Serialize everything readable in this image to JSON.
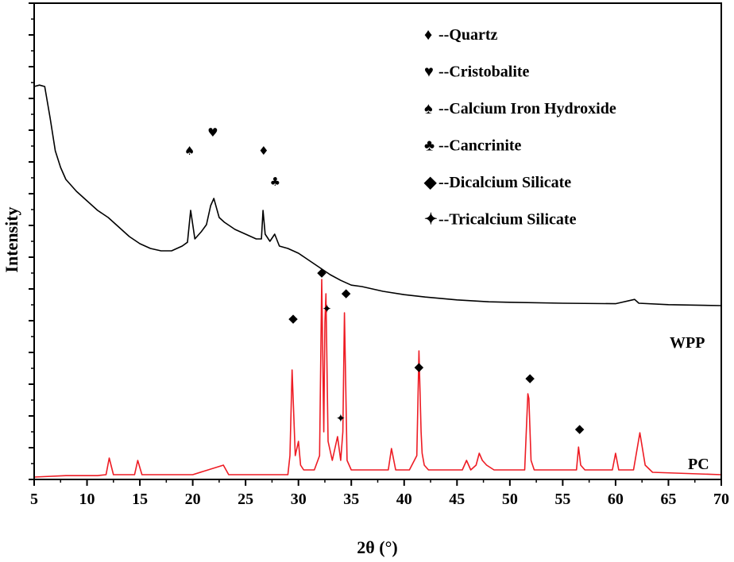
{
  "chart_data": {
    "type": "line",
    "title": "",
    "xlabel": "2θ (°)",
    "ylabel": "Intensity",
    "xlim": [
      5,
      70
    ],
    "x_ticks": [
      "5",
      "10",
      "15",
      "20",
      "25",
      "30",
      "35",
      "40",
      "45",
      "50",
      "55",
      "60",
      "65",
      "70"
    ],
    "ylim": [
      0,
      1
    ],
    "y_tick_labels_shown": false,
    "grid": false,
    "legend_position": "top-right",
    "legend": [
      {
        "symbol": "♦",
        "label": "--Quartz"
      },
      {
        "symbol": "♥",
        "label": "--Cristobalite"
      },
      {
        "symbol": "♠",
        "label": "--Calcium Iron Hydroxide"
      },
      {
        "symbol": "♣",
        "label": "--Cancrinite"
      },
      {
        "symbol": "◆",
        "label": "--Dicalcium Silicate"
      },
      {
        "symbol": "✦",
        "label": "--Tricalcium Silicate"
      }
    ],
    "series": [
      {
        "name": "WPP",
        "color": "#000000",
        "x": [
          5,
          5.5,
          6,
          6.5,
          7,
          7.5,
          8,
          9,
          10,
          11,
          12,
          13,
          14,
          15,
          16,
          17,
          18,
          19,
          19.5,
          19.8,
          20.2,
          20.8,
          21.3,
          21.7,
          22,
          22.5,
          23,
          24,
          25,
          26,
          26.5,
          26.65,
          26.85,
          27.3,
          27.75,
          28.2,
          29,
          30,
          31,
          32,
          33,
          34,
          35,
          36,
          38,
          40,
          42,
          45,
          48,
          50,
          55,
          60,
          61.8,
          62.2,
          65,
          70
        ],
        "y": [
          0.825,
          0.828,
          0.825,
          0.76,
          0.69,
          0.655,
          0.63,
          0.605,
          0.585,
          0.565,
          0.55,
          0.53,
          0.51,
          0.495,
          0.485,
          0.48,
          0.48,
          0.49,
          0.498,
          0.565,
          0.505,
          0.52,
          0.535,
          0.575,
          0.59,
          0.55,
          0.54,
          0.525,
          0.515,
          0.505,
          0.505,
          0.565,
          0.515,
          0.5,
          0.515,
          0.49,
          0.485,
          0.475,
          0.46,
          0.445,
          0.43,
          0.418,
          0.408,
          0.405,
          0.395,
          0.388,
          0.383,
          0.377,
          0.373,
          0.372,
          0.37,
          0.369,
          0.378,
          0.37,
          0.367,
          0.365
        ]
      },
      {
        "name": "PC",
        "color": "#ee1c24",
        "x": [
          5,
          8,
          11,
          11.8,
          12.1,
          12.5,
          14.5,
          14.8,
          15.2,
          20,
          22.9,
          23.4,
          29,
          29.2,
          29.4,
          29.7,
          30.0,
          30.2,
          30.5,
          31.5,
          32.0,
          32.2,
          32.4,
          32.5,
          32.6,
          32.8,
          33.2,
          33.7,
          34.0,
          34.2,
          34.35,
          34.6,
          35,
          36,
          38.5,
          38.8,
          39.2,
          40.5,
          41.2,
          41.4,
          41.6,
          41.7,
          41.9,
          42.3,
          45.5,
          45.9,
          46.3,
          46.8,
          47.1,
          47.4,
          47.8,
          48.5,
          51.4,
          51.7,
          51.8,
          52.0,
          52.3,
          56.3,
          56.5,
          56.7,
          57.1,
          59.7,
          60.0,
          60.3,
          61.7,
          62.3,
          62.8,
          63.5,
          70
        ],
        "y": [
          0.005,
          0.008,
          0.008,
          0.01,
          0.045,
          0.01,
          0.01,
          0.04,
          0.01,
          0.01,
          0.03,
          0.01,
          0.01,
          0.05,
          0.23,
          0.05,
          0.08,
          0.03,
          0.02,
          0.02,
          0.05,
          0.42,
          0.1,
          0.33,
          0.39,
          0.08,
          0.04,
          0.09,
          0.04,
          0.1,
          0.35,
          0.04,
          0.02,
          0.02,
          0.02,
          0.065,
          0.02,
          0.02,
          0.05,
          0.27,
          0.1,
          0.055,
          0.03,
          0.02,
          0.02,
          0.04,
          0.02,
          0.03,
          0.055,
          0.04,
          0.03,
          0.02,
          0.02,
          0.18,
          0.17,
          0.04,
          0.02,
          0.02,
          0.068,
          0.03,
          0.02,
          0.02,
          0.055,
          0.02,
          0.02,
          0.098,
          0.03,
          0.015,
          0.01
        ]
      }
    ],
    "annotations": [
      {
        "symbol": "♠",
        "x": 19.7,
        "y": 0.69
      },
      {
        "symbol": "♥",
        "x": 21.9,
        "y": 0.728
      },
      {
        "symbol": "♦",
        "x": 26.7,
        "y": 0.69
      },
      {
        "symbol": "♣",
        "x": 27.8,
        "y": 0.625
      },
      {
        "symbol": "◆",
        "x": 29.5,
        "y": 0.338
      },
      {
        "symbol": "◆",
        "x": 32.2,
        "y": 0.435
      },
      {
        "symbol": "✦",
        "x": 32.7,
        "y": 0.358
      },
      {
        "symbol": "◆",
        "x": 34.5,
        "y": 0.392
      },
      {
        "symbol": "✦",
        "x": 34.0,
        "y": 0.128
      },
      {
        "symbol": "◆",
        "x": 41.4,
        "y": 0.237
      },
      {
        "symbol": "◆",
        "x": 51.9,
        "y": 0.213
      },
      {
        "symbol": "◆",
        "x": 56.6,
        "y": 0.107
      }
    ]
  }
}
